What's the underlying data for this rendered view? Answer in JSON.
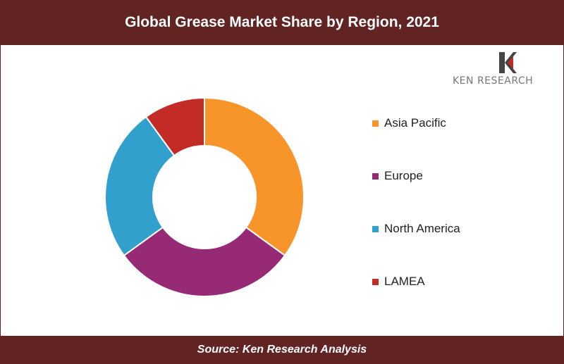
{
  "title": "Global Grease Market Share by Region, 2021",
  "source": "Source: Ken Research Analysis",
  "logo": {
    "text": "KEN RESEARCH"
  },
  "chart_data": {
    "type": "pie",
    "variant": "donut",
    "legend_position": "right",
    "categories": [
      "Asia Pacific",
      "Europe",
      "North America",
      "LAMEA"
    ],
    "values": [
      35,
      30,
      25,
      10
    ],
    "colors": [
      "#F7952B",
      "#962A74",
      "#32A0CD",
      "#C32B26"
    ]
  }
}
